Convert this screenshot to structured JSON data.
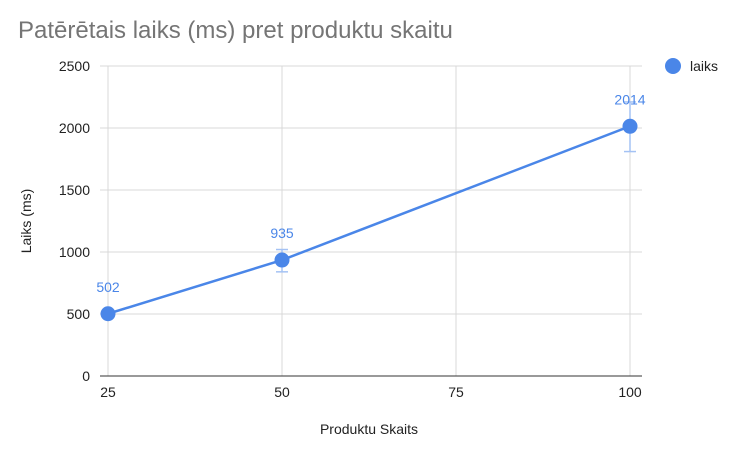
{
  "chart_data": {
    "type": "line",
    "title": "Patērētais laiks (ms) pret produktu skaitu",
    "xlabel": "Produktu Skaits",
    "ylabel": "Laiks (ms)",
    "x": [
      25,
      50,
      100
    ],
    "x_ticks": [
      25,
      50,
      75,
      100
    ],
    "y_ticks": [
      0,
      500,
      1000,
      1500,
      2000,
      2500
    ],
    "xlim": [
      25,
      100
    ],
    "ylim": [
      0,
      2500
    ],
    "grid": true,
    "legend_position": "top-right",
    "series": [
      {
        "name": "laiks",
        "color": "#4a86e8",
        "values": [
          502,
          935,
          2014
        ],
        "data_labels": [
          "502",
          "935",
          "2014"
        ],
        "error_low": [
          475,
          840,
          1810
        ],
        "error_high": [
          510,
          1020,
          2210
        ]
      }
    ]
  }
}
